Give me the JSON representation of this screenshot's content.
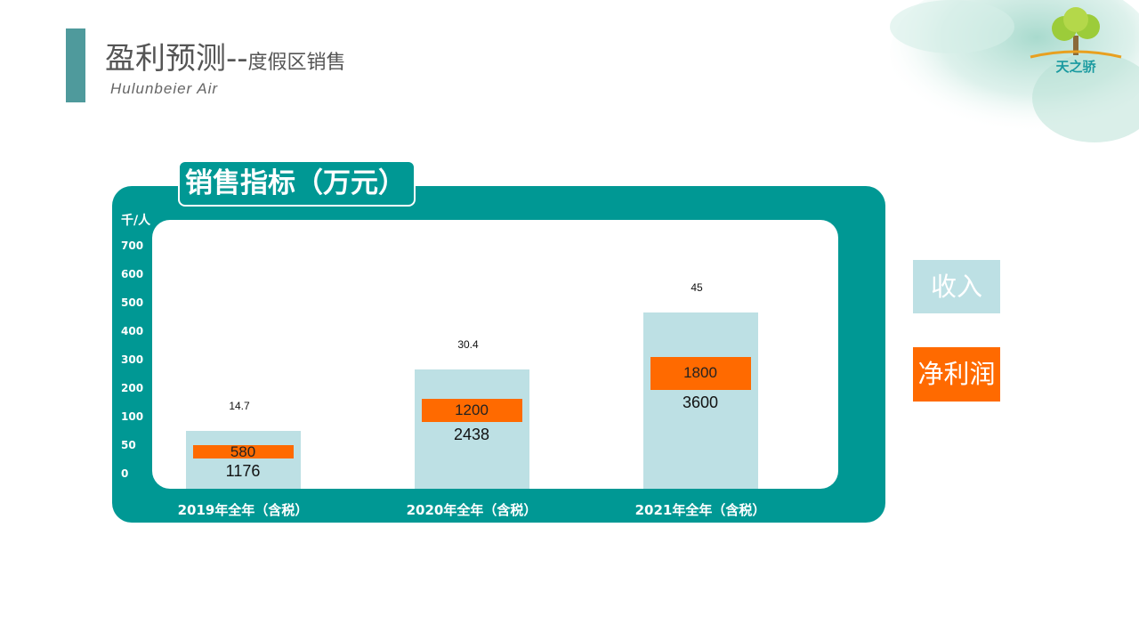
{
  "header": {
    "title_main": "盈利预测--",
    "title_sub": "度假区销售",
    "subtitle_en": "Hulunbeier  Air",
    "logo_text": "天之骄"
  },
  "panel": {
    "title": "销售指标（万元）"
  },
  "colors": {
    "teal": "#009894",
    "revenue_bar": "#bde0e4",
    "profit_bar": "#ff6a00"
  },
  "chart_data": {
    "type": "bar",
    "y_unit": "千/人",
    "y_ticks": [
      "700",
      "600",
      "500",
      "400",
      "300",
      "200",
      "100",
      "50",
      "0"
    ],
    "categories": [
      "2019年全年（含税）",
      "2020年全年（含税）",
      "2021年全年（含税）"
    ],
    "series": [
      {
        "name": "收入",
        "values": [
          1176,
          2438,
          3600
        ]
      },
      {
        "name": "净利润",
        "values": [
          580,
          1200,
          1800
        ]
      }
    ],
    "top_labels": [
      "14.7",
      "30.4",
      "45"
    ],
    "legend": [
      "收入",
      "净利润"
    ],
    "legend_placement": "right"
  }
}
